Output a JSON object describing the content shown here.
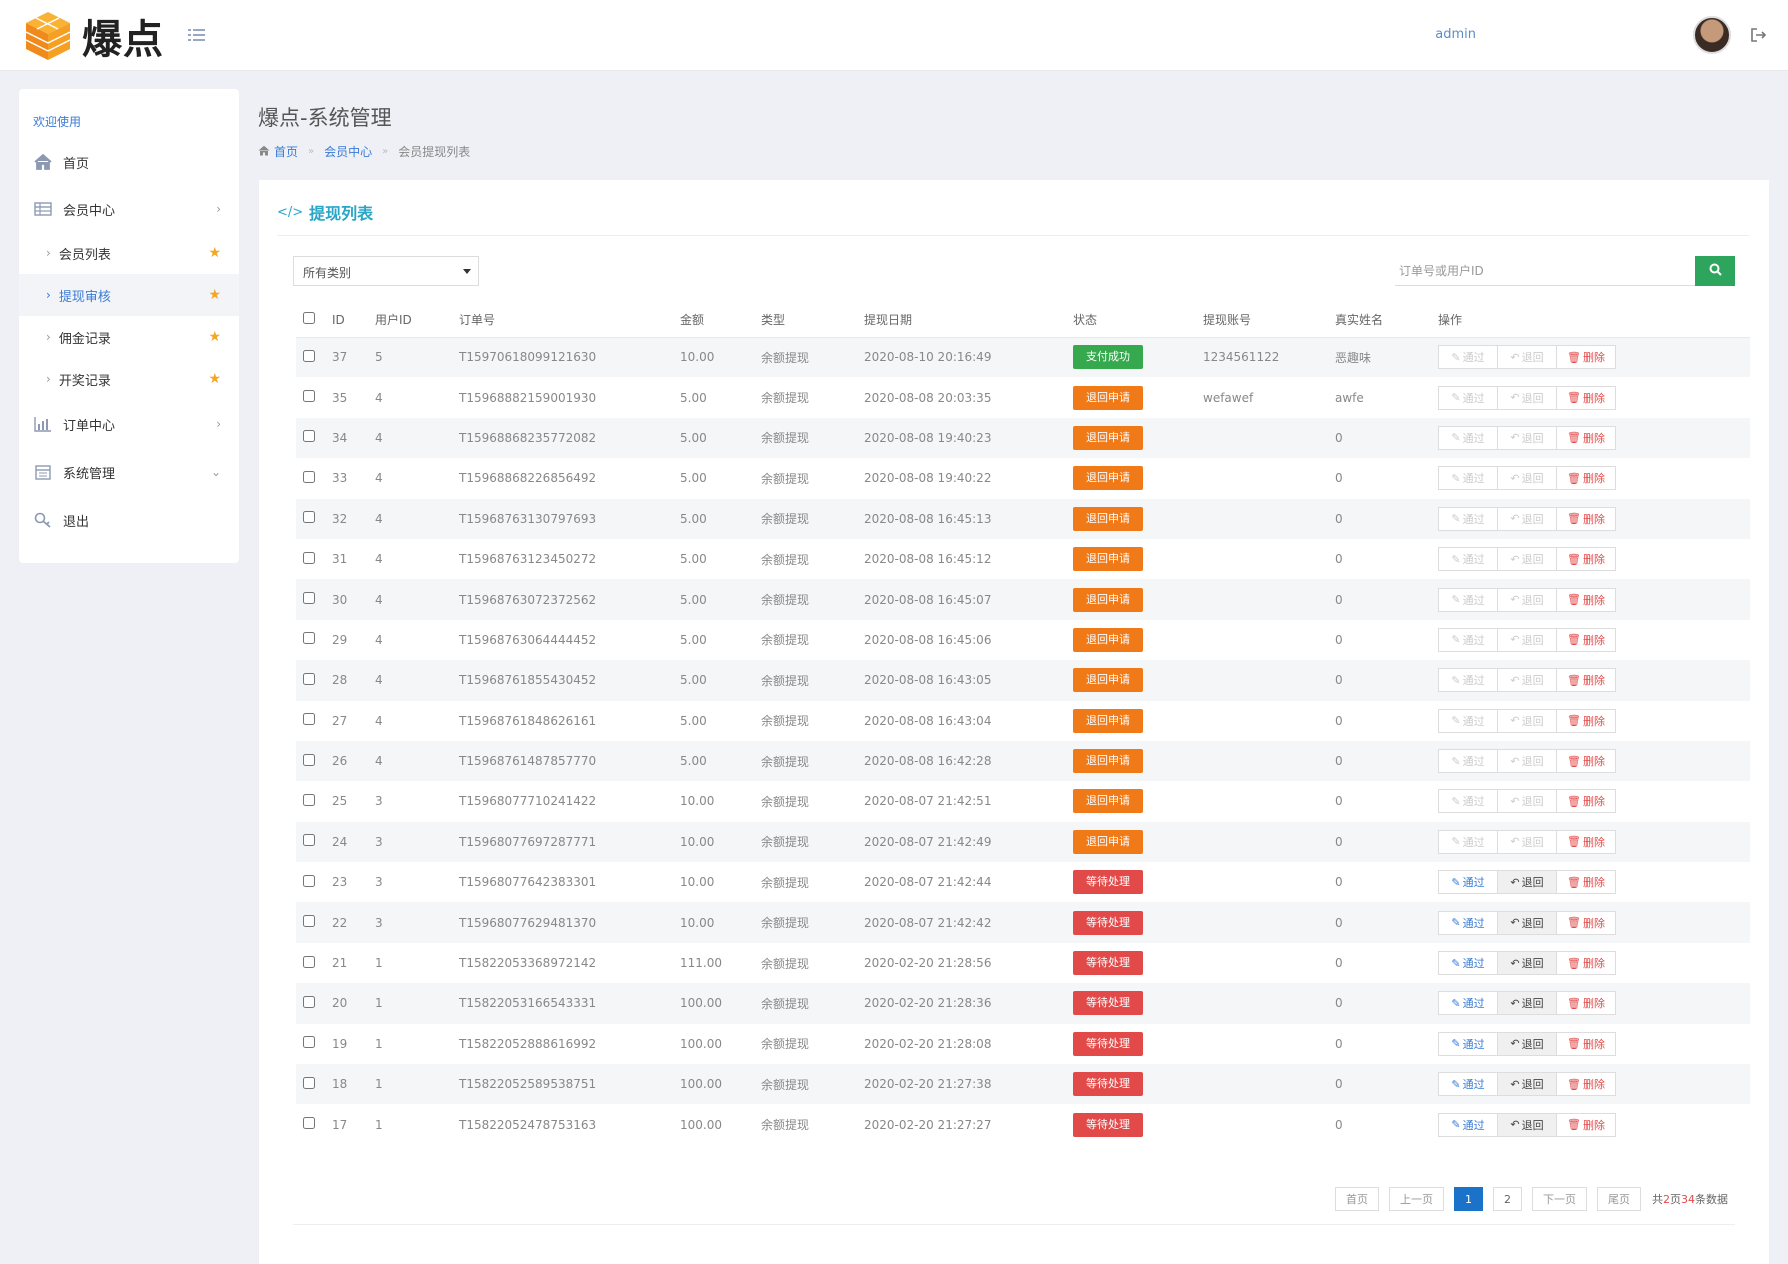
{
  "app": {
    "logo_text": "爆点",
    "user": "admin"
  },
  "sidebar": {
    "welcome": "欢迎使用",
    "home": "首页",
    "member_center": "会员中心",
    "member_list": "会员列表",
    "withdraw_review": "提现审核",
    "commission": "佣金记录",
    "lottery": "开奖记录",
    "order_center": "订单中心",
    "system": "系统管理",
    "logout": "退出"
  },
  "header": {
    "title": "爆点-系统管理",
    "breadcrumb": [
      "首页",
      "会员中心",
      "会员提现列表"
    ]
  },
  "panel": {
    "title": "提现列表",
    "filter_value": "所有类别",
    "search_placeholder": "订单号或用户ID"
  },
  "table": {
    "columns": [
      "ID",
      "用户ID",
      "订单号",
      "金额",
      "类型",
      "提现日期",
      "状态",
      "提现账号",
      "真实姓名",
      "操作"
    ],
    "op_labels": {
      "pass": "通过",
      "back": "退回",
      "delete": "删除"
    },
    "rows": [
      {
        "id": "37",
        "uid": "5",
        "order": "T15970618099121630",
        "amount": "10.00",
        "type": "余额提现",
        "date": "2020-08-10 20:16:49",
        "status": "支付成功",
        "status_kind": "success",
        "account": "1234561122",
        "name": "恶趣味",
        "enabled": false
      },
      {
        "id": "35",
        "uid": "4",
        "order": "T15968882159001930",
        "amount": "5.00",
        "type": "余额提现",
        "date": "2020-08-08 20:03:35",
        "status": "退回申请",
        "status_kind": "orange",
        "account": "wefawef",
        "name": "awfe",
        "enabled": false
      },
      {
        "id": "34",
        "uid": "4",
        "order": "T15968868235772082",
        "amount": "5.00",
        "type": "余额提现",
        "date": "2020-08-08 19:40:23",
        "status": "退回申请",
        "status_kind": "orange",
        "account": "",
        "name": "0",
        "enabled": false
      },
      {
        "id": "33",
        "uid": "4",
        "order": "T15968868226856492",
        "amount": "5.00",
        "type": "余额提现",
        "date": "2020-08-08 19:40:22",
        "status": "退回申请",
        "status_kind": "orange",
        "account": "",
        "name": "0",
        "enabled": false
      },
      {
        "id": "32",
        "uid": "4",
        "order": "T15968763130797693",
        "amount": "5.00",
        "type": "余额提现",
        "date": "2020-08-08 16:45:13",
        "status": "退回申请",
        "status_kind": "orange",
        "account": "",
        "name": "0",
        "enabled": false
      },
      {
        "id": "31",
        "uid": "4",
        "order": "T15968763123450272",
        "amount": "5.00",
        "type": "余额提现",
        "date": "2020-08-08 16:45:12",
        "status": "退回申请",
        "status_kind": "orange",
        "account": "",
        "name": "0",
        "enabled": false
      },
      {
        "id": "30",
        "uid": "4",
        "order": "T15968763072372562",
        "amount": "5.00",
        "type": "余额提现",
        "date": "2020-08-08 16:45:07",
        "status": "退回申请",
        "status_kind": "orange",
        "account": "",
        "name": "0",
        "enabled": false
      },
      {
        "id": "29",
        "uid": "4",
        "order": "T15968763064444452",
        "amount": "5.00",
        "type": "余额提现",
        "date": "2020-08-08 16:45:06",
        "status": "退回申请",
        "status_kind": "orange",
        "account": "",
        "name": "0",
        "enabled": false
      },
      {
        "id": "28",
        "uid": "4",
        "order": "T15968761855430452",
        "amount": "5.00",
        "type": "余额提现",
        "date": "2020-08-08 16:43:05",
        "status": "退回申请",
        "status_kind": "orange",
        "account": "",
        "name": "0",
        "enabled": false
      },
      {
        "id": "27",
        "uid": "4",
        "order": "T15968761848626161",
        "amount": "5.00",
        "type": "余额提现",
        "date": "2020-08-08 16:43:04",
        "status": "退回申请",
        "status_kind": "orange",
        "account": "",
        "name": "0",
        "enabled": false
      },
      {
        "id": "26",
        "uid": "4",
        "order": "T15968761487857770",
        "amount": "5.00",
        "type": "余额提现",
        "date": "2020-08-08 16:42:28",
        "status": "退回申请",
        "status_kind": "orange",
        "account": "",
        "name": "0",
        "enabled": false
      },
      {
        "id": "25",
        "uid": "3",
        "order": "T15968077710241422",
        "amount": "10.00",
        "type": "余额提现",
        "date": "2020-08-07 21:42:51",
        "status": "退回申请",
        "status_kind": "orange",
        "account": "",
        "name": "0",
        "enabled": false
      },
      {
        "id": "24",
        "uid": "3",
        "order": "T15968077697287771",
        "amount": "10.00",
        "type": "余额提现",
        "date": "2020-08-07 21:42:49",
        "status": "退回申请",
        "status_kind": "orange",
        "account": "",
        "name": "0",
        "enabled": false
      },
      {
        "id": "23",
        "uid": "3",
        "order": "T15968077642383301",
        "amount": "10.00",
        "type": "余额提现",
        "date": "2020-08-07 21:42:44",
        "status": "等待处理",
        "status_kind": "red",
        "account": "",
        "name": "0",
        "enabled": true
      },
      {
        "id": "22",
        "uid": "3",
        "order": "T15968077629481370",
        "amount": "10.00",
        "type": "余额提现",
        "date": "2020-08-07 21:42:42",
        "status": "等待处理",
        "status_kind": "red",
        "account": "",
        "name": "0",
        "enabled": true
      },
      {
        "id": "21",
        "uid": "1",
        "order": "T15822053368972142",
        "amount": "111.00",
        "type": "余额提现",
        "date": "2020-02-20 21:28:56",
        "status": "等待处理",
        "status_kind": "red",
        "account": "",
        "name": "0",
        "enabled": true
      },
      {
        "id": "20",
        "uid": "1",
        "order": "T15822053166543331",
        "amount": "100.00",
        "type": "余额提现",
        "date": "2020-02-20 21:28:36",
        "status": "等待处理",
        "status_kind": "red",
        "account": "",
        "name": "0",
        "enabled": true
      },
      {
        "id": "19",
        "uid": "1",
        "order": "T15822052888616992",
        "amount": "100.00",
        "type": "余额提现",
        "date": "2020-02-20 21:28:08",
        "status": "等待处理",
        "status_kind": "red",
        "account": "",
        "name": "0",
        "enabled": true
      },
      {
        "id": "18",
        "uid": "1",
        "order": "T15822052589538751",
        "amount": "100.00",
        "type": "余额提现",
        "date": "2020-02-20 21:27:38",
        "status": "等待处理",
        "status_kind": "red",
        "account": "",
        "name": "0",
        "enabled": true
      },
      {
        "id": "17",
        "uid": "1",
        "order": "T15822052478753163",
        "amount": "100.00",
        "type": "余额提现",
        "date": "2020-02-20 21:27:27",
        "status": "等待处理",
        "status_kind": "red",
        "account": "",
        "name": "0",
        "enabled": true
      }
    ]
  },
  "pagination": {
    "first": "首页",
    "prev": "上一页",
    "pages": [
      "1",
      "2"
    ],
    "current": "1",
    "next": "下一页",
    "last": "尾页",
    "total_prefix": "共",
    "total_pages": "2",
    "total_mid": "页",
    "total_count": "34",
    "total_suffix": "条数据"
  },
  "colors": {
    "accent": "#3a7bd5",
    "success": "#36a94e",
    "warning": "#f07918",
    "danger": "#e24a4a",
    "search_button": "#2ea55c"
  },
  "icons": {
    "menu_toggle": "list-icon",
    "logout": "logout-icon",
    "home": "home-icon",
    "member": "table-icon",
    "order": "bar-chart-icon",
    "system": "calendar-icon",
    "exit": "key-icon",
    "search": "search-icon"
  }
}
